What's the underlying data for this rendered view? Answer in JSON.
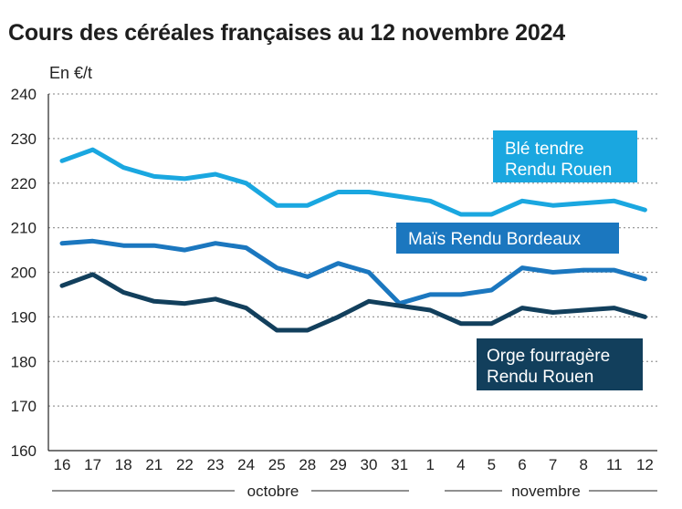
{
  "title": "Cours des céréales françaises au 12 novembre 2024",
  "unit": "En €/t",
  "chart_data": {
    "type": "line",
    "title": "Cours des céréales françaises au 12 novembre 2024",
    "ylabel": "En €/t",
    "ylim": [
      160,
      240
    ],
    "yticks": [
      160,
      170,
      180,
      190,
      200,
      210,
      220,
      230,
      240
    ],
    "grid": true,
    "categories": [
      "16",
      "17",
      "18",
      "21",
      "22",
      "23",
      "24",
      "25",
      "28",
      "29",
      "30",
      "31",
      "1",
      "4",
      "5",
      "6",
      "7",
      "8",
      "11",
      "12"
    ],
    "months": [
      {
        "label": "octobre"
      },
      {
        "label": "novembre"
      }
    ],
    "series": [
      {
        "name": "Blé tendre Rendu Rouen",
        "label_lines": [
          "Blé tendre",
          "Rendu Rouen"
        ],
        "color": "#1aa7e0",
        "values": [
          225,
          227.5,
          223.5,
          221.5,
          221,
          222,
          220,
          215,
          215,
          218,
          218,
          217,
          216,
          213,
          213,
          216,
          215,
          215.5,
          216,
          214
        ]
      },
      {
        "name": "Maïs Rendu Bordeaux",
        "label_lines": [
          "Maïs Rendu Bordeaux"
        ],
        "color": "#1b77bf",
        "values": [
          206.5,
          207,
          206,
          206,
          205,
          206.5,
          205.5,
          201,
          199,
          202,
          200,
          193,
          195,
          195,
          196,
          201,
          200,
          200.5,
          200.5,
          198.5
        ]
      },
      {
        "name": "Orge fourragère Rendu Rouen",
        "label_lines": [
          "Orge fourragère",
          "Rendu Rouen"
        ],
        "color": "#123f5c",
        "values": [
          197,
          199.5,
          195.5,
          193.5,
          193,
          194,
          192,
          187,
          187,
          190,
          193.5,
          192.5,
          191.5,
          188.5,
          188.5,
          192,
          191,
          191.5,
          192,
          190
        ]
      }
    ]
  }
}
